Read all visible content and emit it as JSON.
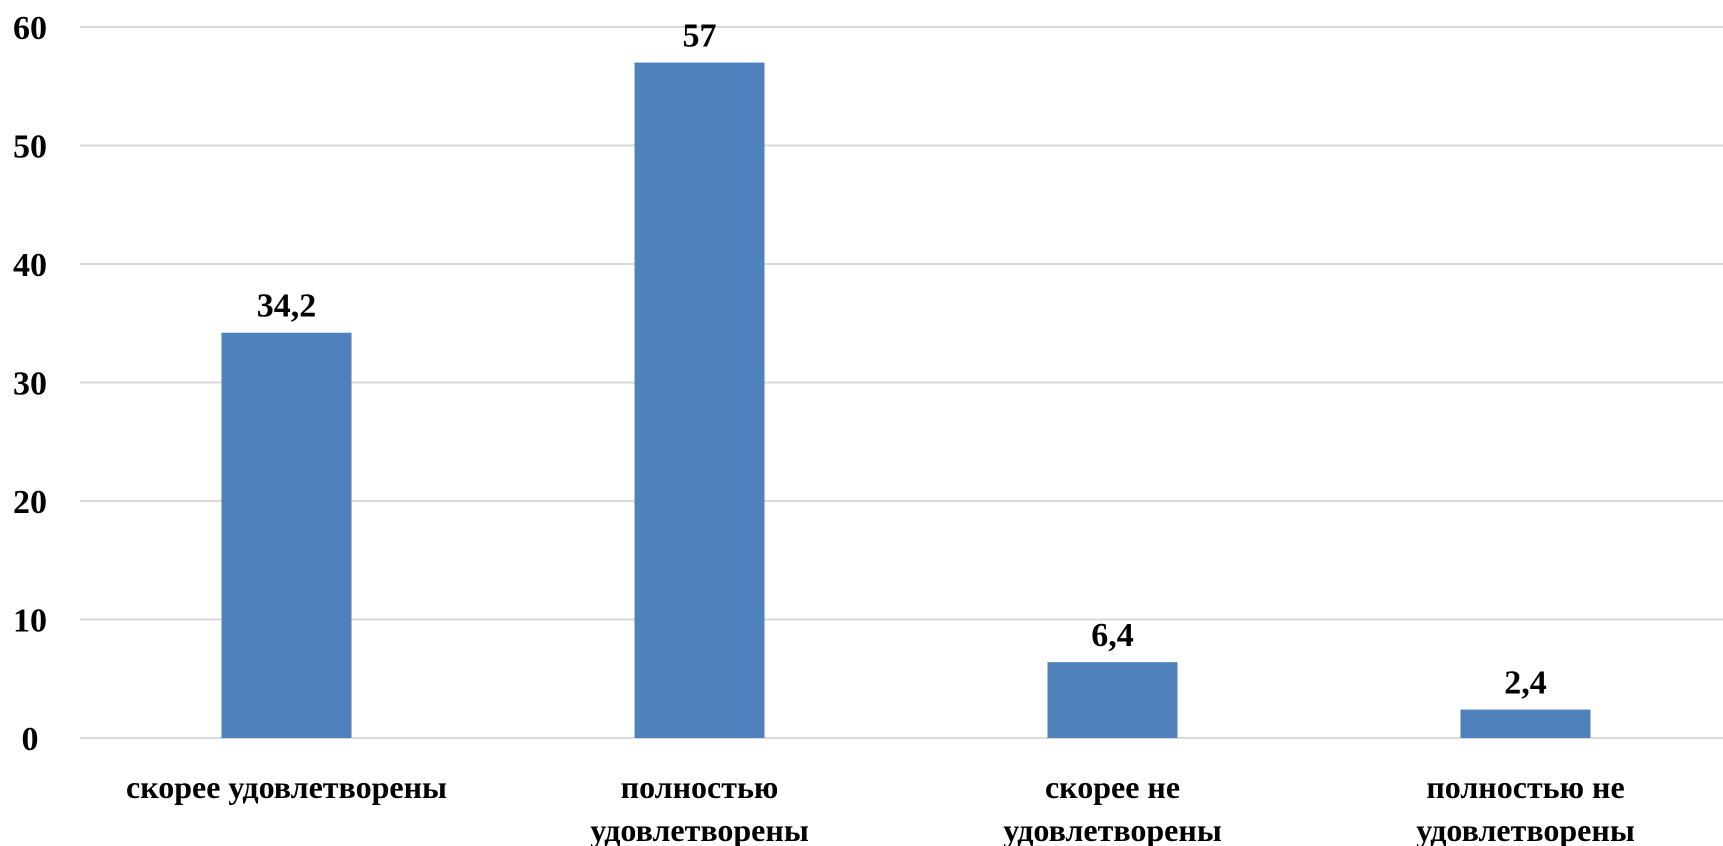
{
  "chart_data": {
    "type": "bar",
    "title": "",
    "xlabel": "",
    "ylabel": "",
    "categories": [
      [
        "скорее удовлетворены"
      ],
      [
        "полностью",
        "удовлетворены"
      ],
      [
        "скорее не",
        "удовлетворены"
      ],
      [
        "полностью не",
        "удовлетворены"
      ]
    ],
    "values": [
      34.2,
      57,
      6.4,
      2.4
    ],
    "value_labels": [
      "34,2",
      "57",
      "6,4",
      "2,4"
    ],
    "ylim": [
      0,
      60
    ],
    "yticks": [
      0,
      10,
      20,
      30,
      40,
      50,
      60
    ],
    "ytick_labels": [
      "0",
      "10",
      "20",
      "30",
      "40",
      "50",
      "60"
    ],
    "grid": true,
    "legend": "none",
    "colors": {
      "bar": "#4f81bd",
      "grid": "#d9d9d9",
      "text": "#000000"
    }
  }
}
